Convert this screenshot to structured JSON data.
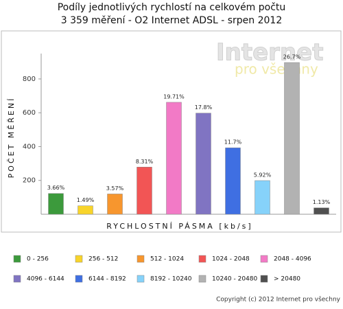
{
  "chart_data": {
    "type": "bar",
    "title": "Podíly jednotlivých rychlostí na celkovém počtu",
    "subtitle": "3 359 měření - O2 Internet ADSL  - srpen 2012",
    "y_label": "POČET MĚŘENÍ",
    "x_label": "RYCHLOSTNÍ PÁSMA [kb/s]",
    "categories": [
      "0 - 256",
      "256 - 512",
      "512 - 1024",
      "1024 - 2048",
      "2048 - 4096",
      "4096 - 6144",
      "6144 - 8192",
      "8192 - 10240",
      "10240 - 20480",
      "> 20480"
    ],
    "values": [
      123,
      50,
      120,
      279,
      662,
      598,
      393,
      199,
      897,
      38
    ],
    "value_labels": [
      "3.66%",
      "1.49%",
      "3.57%",
      "8.31%",
      "19.71%",
      "17.8%",
      "11.7%",
      "5.92%",
      "26.7%",
      "1.13%"
    ],
    "colors": [
      "#3c9a3c",
      "#f8d42a",
      "#f7962e",
      "#f25555",
      "#f27ac6",
      "#8074c2",
      "#3f6fe2",
      "#86d2fa",
      "#b2b2b2",
      "#505050"
    ],
    "ylim": [
      0,
      950
    ],
    "yticks": [
      200,
      400,
      600,
      800
    ],
    "watermark": [
      "Internet",
      "pro všechny"
    ],
    "copyright": "Copyright (c) 2012 Internet pro všechny"
  }
}
